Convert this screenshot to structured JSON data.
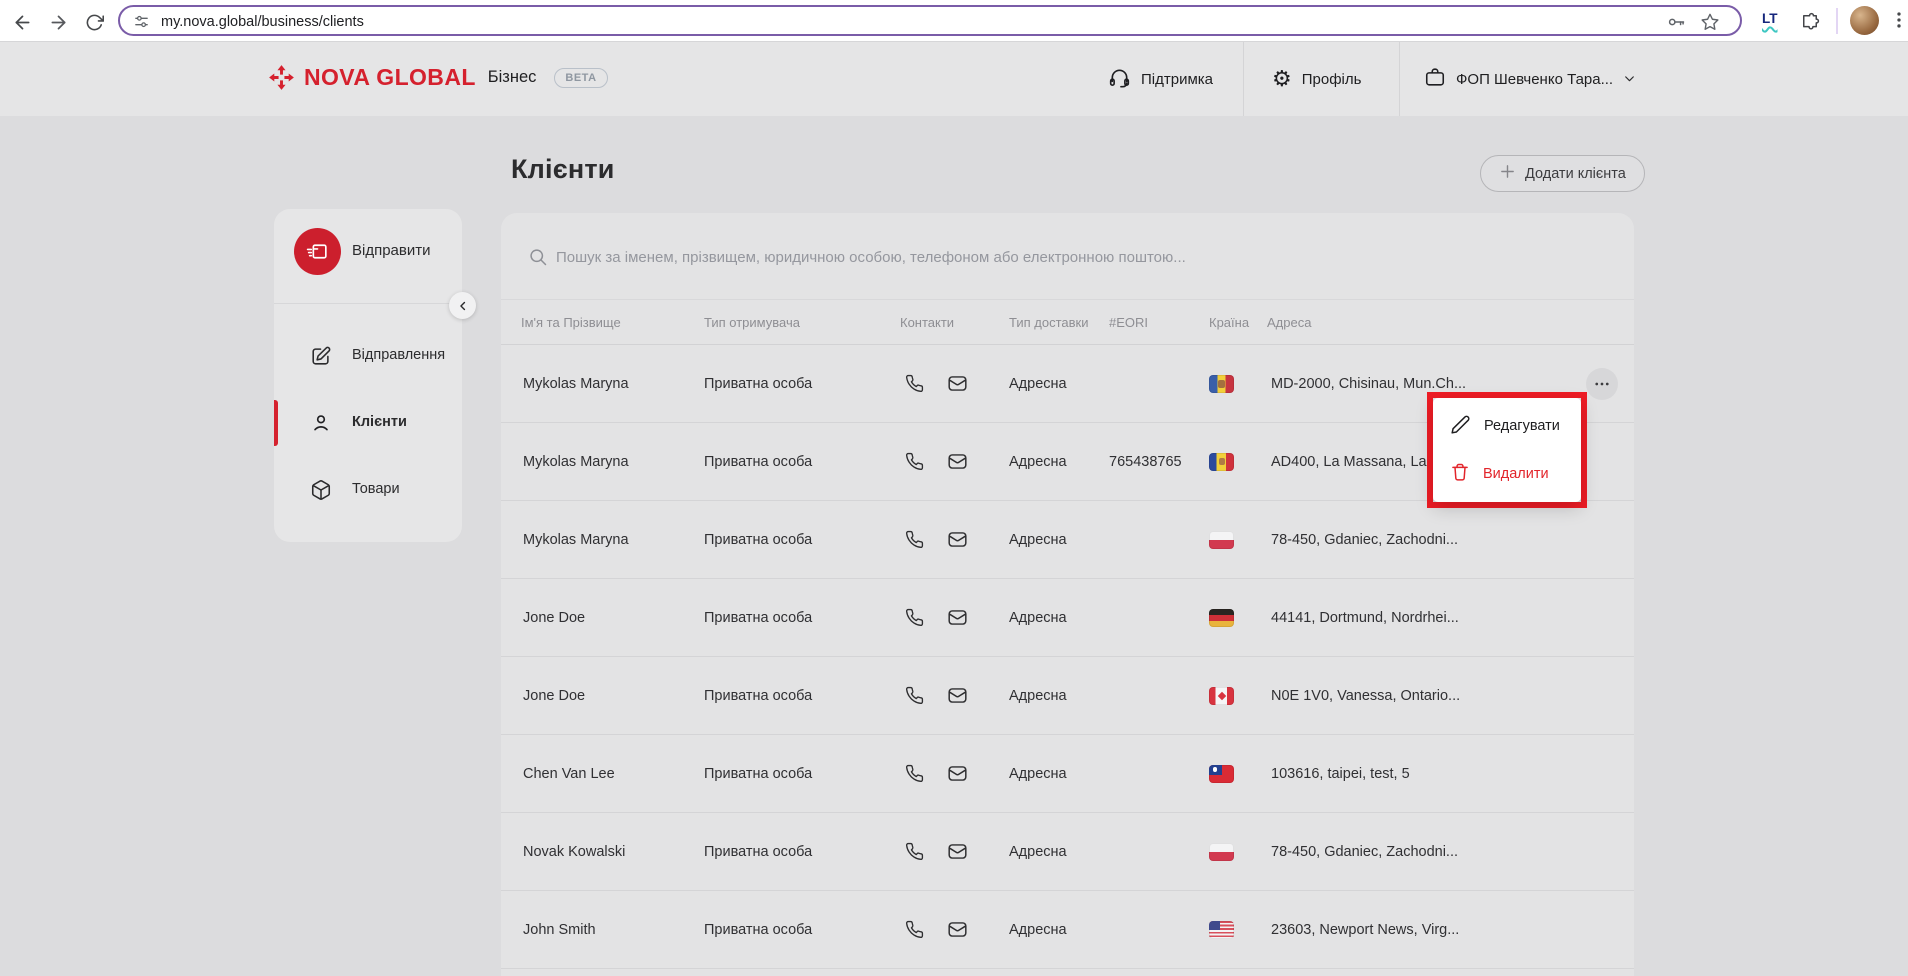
{
  "browser": {
    "url": "my.nova.global/business/clients",
    "extension_badge": "LT"
  },
  "app_header": {
    "brand": "NOVA GLOBAL",
    "product": "Бізнес",
    "beta": "BETA",
    "support": "Підтримка",
    "profile": "Профіль",
    "account": "ФОП Шевченко Тара..."
  },
  "page": {
    "title": "Клієнти",
    "add_client": "Додати клієнта"
  },
  "sidebar": {
    "send": "Відправити",
    "items": [
      {
        "label": "Відправлення",
        "icon": "edit-square-icon",
        "active": false
      },
      {
        "label": "Клієнти",
        "icon": "person-icon",
        "active": true
      },
      {
        "label": "Товари",
        "icon": "package-icon",
        "active": false
      }
    ]
  },
  "clients": {
    "search_placeholder": "Пошук за іменем, прізвищем, юридичною особою, телефоном або електронною поштою...",
    "columns": [
      "Ім'я та Прізвище",
      "Тип отримувача",
      "Контакти",
      "Тип доставки",
      "#EORI",
      "Країна",
      "Адреса"
    ],
    "rows": [
      {
        "name": "Mykolas Maryna",
        "recipient_type": "Приватна особа",
        "delivery_type": "Адресна",
        "eori": "",
        "country": "md",
        "address": "MD-2000, Chisinau, Mun.Ch...",
        "actions_visible": true
      },
      {
        "name": "Mykolas Maryna",
        "recipient_type": "Приватна особа",
        "delivery_type": "Адресна",
        "eori": "765438765",
        "country": "ad",
        "address": "AD400, La Massana, La M...",
        "actions_visible": false
      },
      {
        "name": "Mykolas Maryna",
        "recipient_type": "Приватна особа",
        "delivery_type": "Адресна",
        "eori": "",
        "country": "pl",
        "address": "78-450, Gdaniec, Zachodni...",
        "actions_visible": false
      },
      {
        "name": "Jone Doe",
        "recipient_type": "Приватна особа",
        "delivery_type": "Адресна",
        "eori": "",
        "country": "de",
        "address": "44141, Dortmund, Nordrhei...",
        "actions_visible": false
      },
      {
        "name": "Jone Doe",
        "recipient_type": "Приватна особа",
        "delivery_type": "Адресна",
        "eori": "",
        "country": "ca",
        "address": "N0E 1V0, Vanessa, Ontario...",
        "actions_visible": false
      },
      {
        "name": "Chen Van Lee",
        "recipient_type": "Приватна особа",
        "delivery_type": "Адресна",
        "eori": "",
        "country": "tw",
        "address": "103616, taipei, test, 5",
        "actions_visible": false
      },
      {
        "name": "Novak Kowalski",
        "recipient_type": "Приватна особа",
        "delivery_type": "Адресна",
        "eori": "",
        "country": "pl",
        "address": "78-450, Gdaniec, Zachodni...",
        "actions_visible": false
      },
      {
        "name": "John Smith",
        "recipient_type": "Приватна особа",
        "delivery_type": "Адресна",
        "eori": "",
        "country": "us",
        "address": "23603, Newport News, Virg...",
        "actions_visible": false
      }
    ]
  },
  "context_menu": {
    "edit": "Редагувати",
    "delete": "Видалити"
  },
  "colors": {
    "brand_red": "#d5212e",
    "delete_red": "#e2252b",
    "annotation_red": "#ee1c25",
    "url_bar_accent": "#7a5ca8"
  }
}
